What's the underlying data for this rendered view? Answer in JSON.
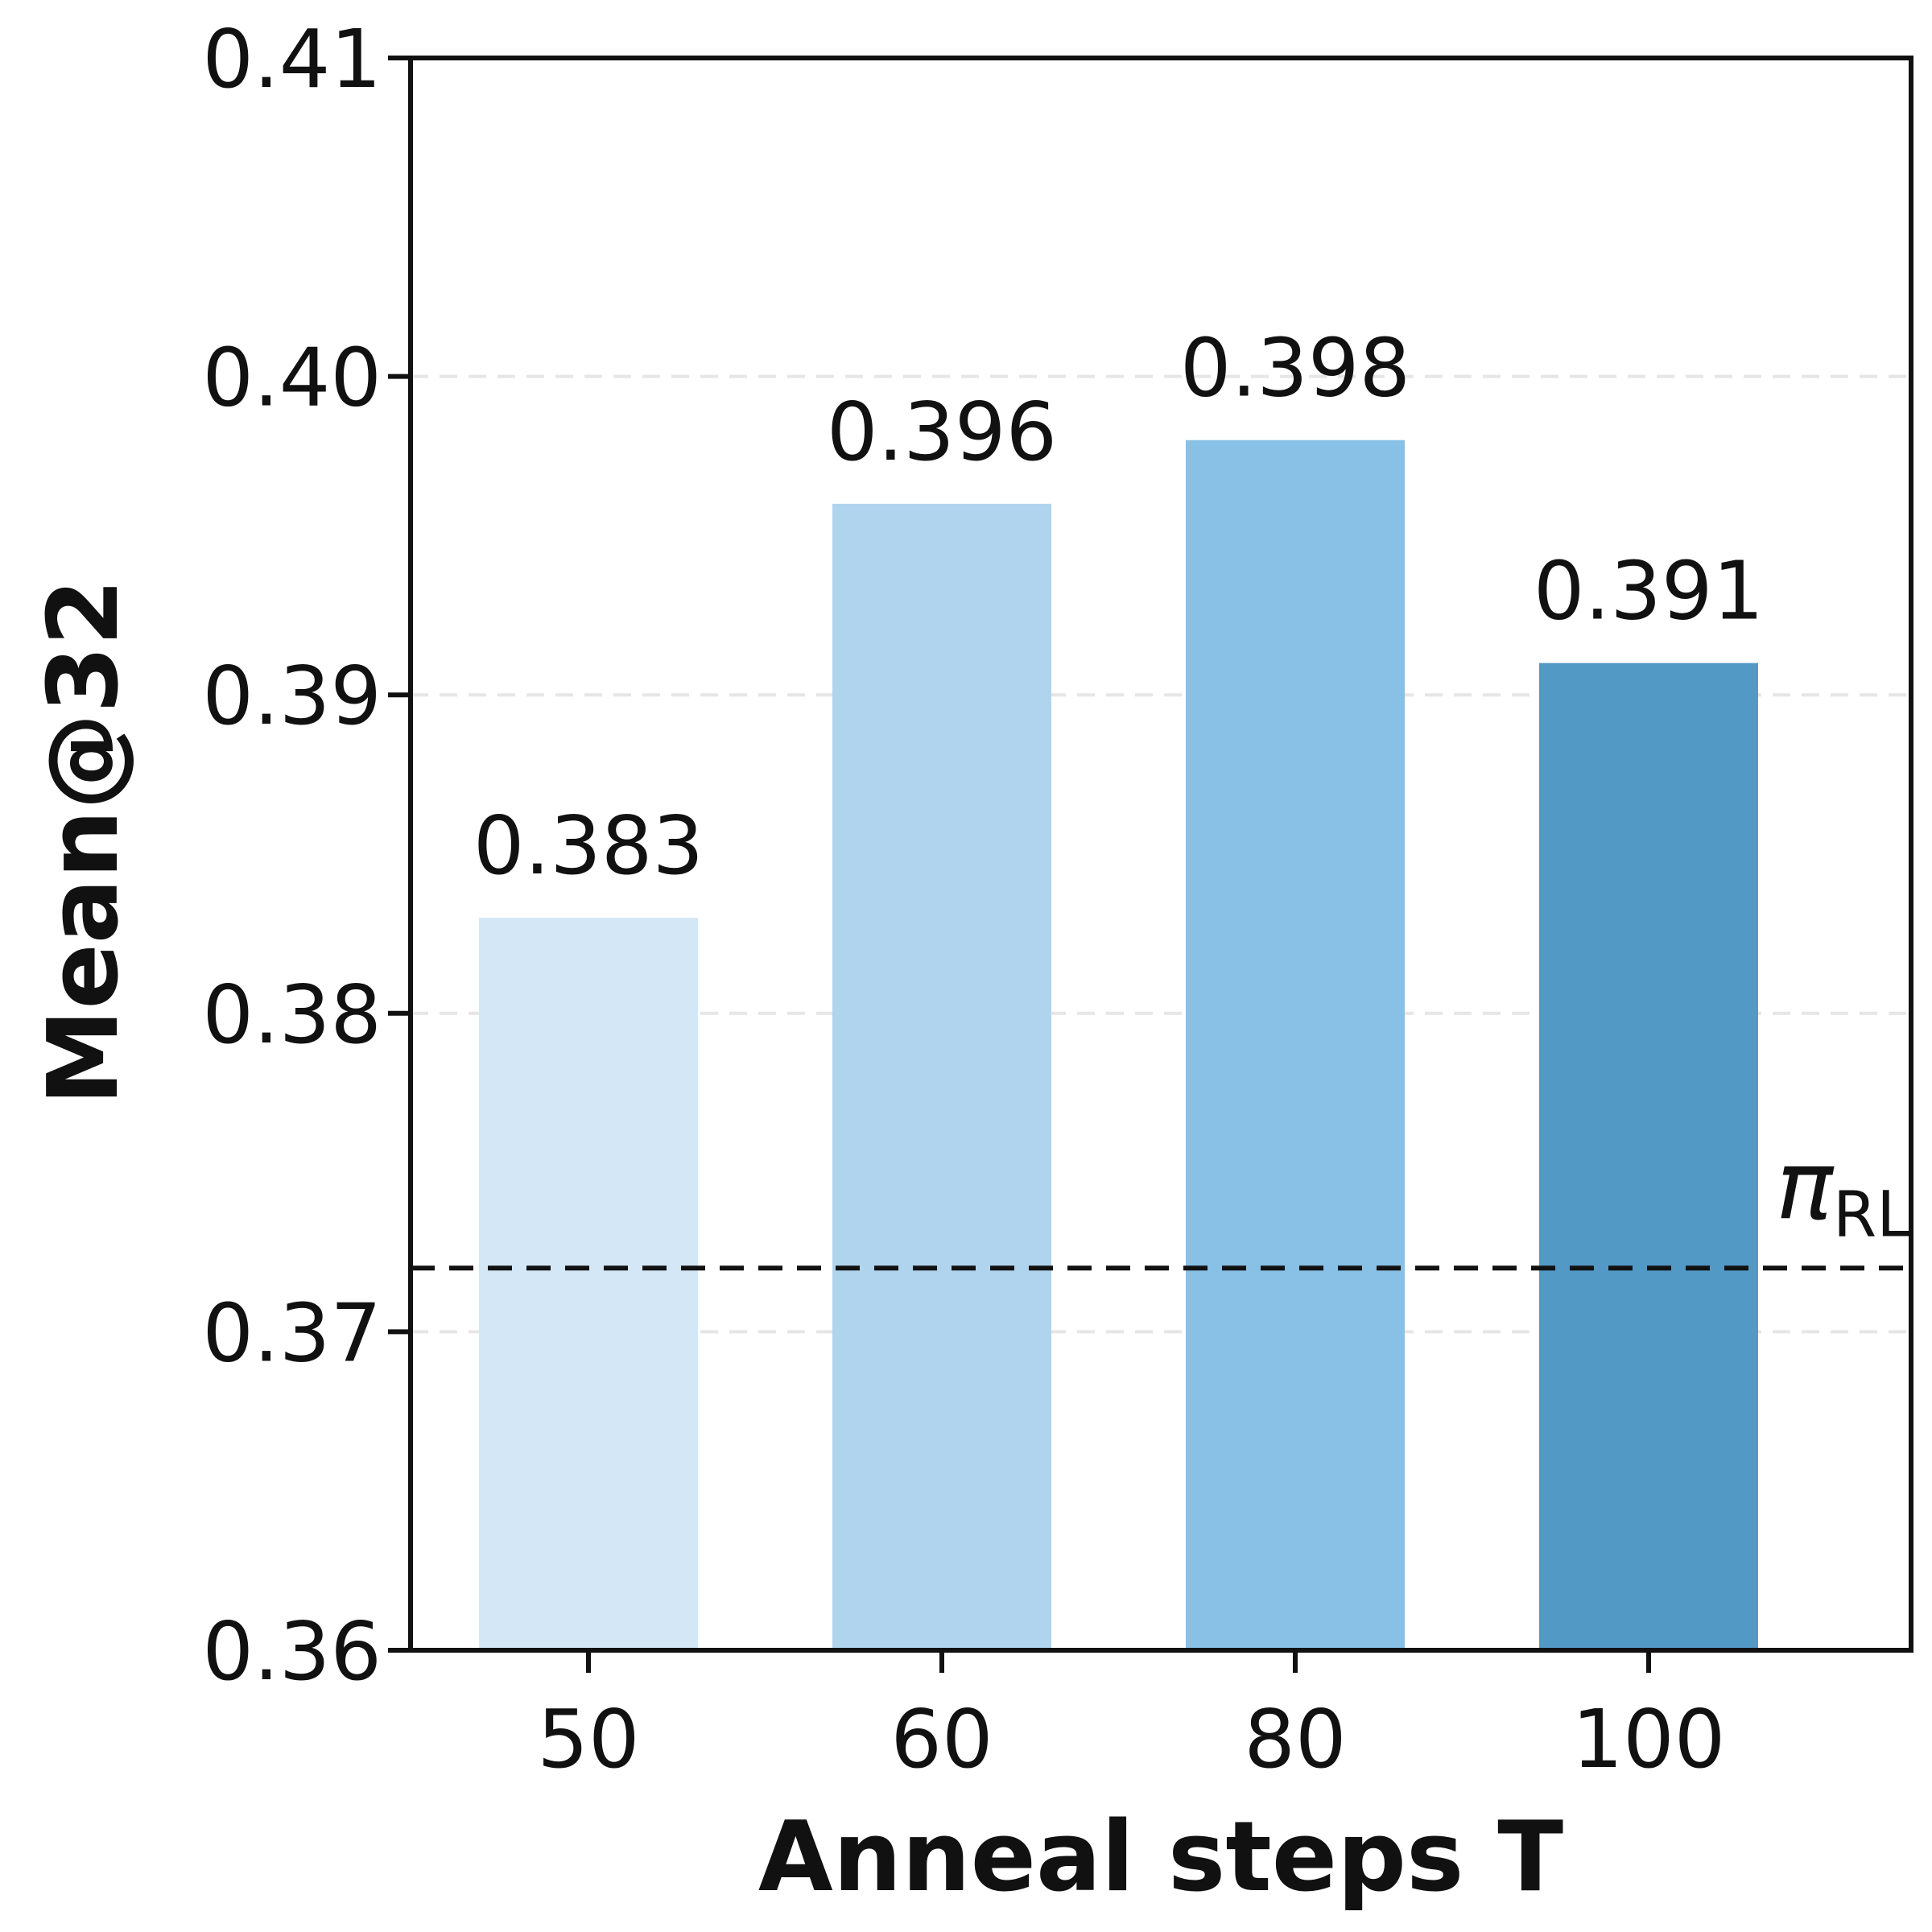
{
  "chart_data": {
    "type": "bar",
    "categories": [
      "50",
      "60",
      "80",
      "100"
    ],
    "values": [
      0.383,
      0.396,
      0.398,
      0.391
    ],
    "value_labels": [
      "0.383",
      "0.396",
      "0.398",
      "0.391"
    ],
    "colors": [
      "#d4e7f6",
      "#b1d4ee",
      "#88c0e6",
      "#5399c6"
    ],
    "xlabel": "Anneal steps T",
    "ylabel": "Mean@32",
    "ylim": [
      0.36,
      0.41
    ],
    "yticks": [
      0.36,
      0.37,
      0.38,
      0.39,
      0.4,
      0.41
    ],
    "ytick_labels": [
      "0.36",
      "0.37",
      "0.38",
      "0.39",
      "0.40",
      "0.41"
    ],
    "grid": "horizontal dashed",
    "reference_line": {
      "value": 0.372,
      "style": "dashed",
      "label_main": "π",
      "label_sub": "RL"
    }
  }
}
